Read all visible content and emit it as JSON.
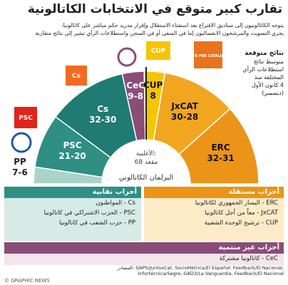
{
  "title": "تقارب كبير متوقع في الانتخابات الكاتالونية",
  "subtitle": [
    "يتوجه الكاتالونيون إلى صناديق الاقتراع بعد استفتاء الاستقلال وإقرار مدريد حكم مباشر على كاتالونيا.",
    "يجري التصويت والمرشحون الانفصاليون إما في المنفى أو في السجن واستطلاعات الرأي تشير إلى نتائج متقاربة"
  ],
  "forecast": {
    "heading": "نتائج متوقعة",
    "text": [
      "متوسط نتائج",
      "استطلاعات الرأي",
      "المختلفة منذ",
      "4 كانون الأول",
      "(ديسمبر)"
    ]
  },
  "parties": [
    {
      "name": "PP",
      "seats": "7-6",
      "color": "#a9d3c9"
    },
    {
      "name": "PSC",
      "seats": "21-20",
      "color": "#2f8f84",
      "logo": "PSC"
    },
    {
      "name": "Cs",
      "seats": "32-30",
      "color": "#1f7b73",
      "logo": "Cs"
    },
    {
      "name": "CeC",
      "seats": "9-8",
      "color": "#8a4d78"
    },
    {
      "name": "CUP",
      "seats": "8",
      "color": "#f4c500",
      "logo": "CUP"
    },
    {
      "name": "JxCAT",
      "seats": "30-28",
      "color": "#f2a51f",
      "logo": "JUNTS PER CATALUNYA"
    },
    {
      "name": "ERC",
      "seats": "32-31",
      "color": "#eb9417"
    }
  ],
  "majority": [
    "الأغلبية:",
    "68 مقعد"
  ],
  "parliament": "البرلمان الكاتالوني",
  "groups": [
    {
      "heading": "أحزاب نقابية",
      "color": "#2f8f84",
      "items": [
        "Cs - المواطنون",
        "PSC - الحزب الاشتراكي في كاتالونيا",
        "PP - حزب الشعب في كاتالونيا"
      ]
    },
    {
      "heading": "أحزاب مستقلة",
      "color": "#eb9417",
      "items": [
        "ERC - اليسار الجمهوري لكاتالونيا",
        "JxCAT - معاً من أجل كاتالونيا",
        "CUP - ترشيح الوحدة الشعبية"
      ]
    },
    {
      "heading": "أحزاب غير منتمية",
      "color": "#8a4d78",
      "items": [
        "CeC - كاتالونيا مشتركة"
      ]
    }
  ],
  "sources": [
    "المصادر: GAPS/JuntsxCat, SocioMétrica/El Español, Feedback/El Nacional,",
    "Infortécnica/Segre, GAD3/La Vanguardia, Feedback/El Nacional"
  ],
  "credit": "© GRAPHIC NEWS"
}
